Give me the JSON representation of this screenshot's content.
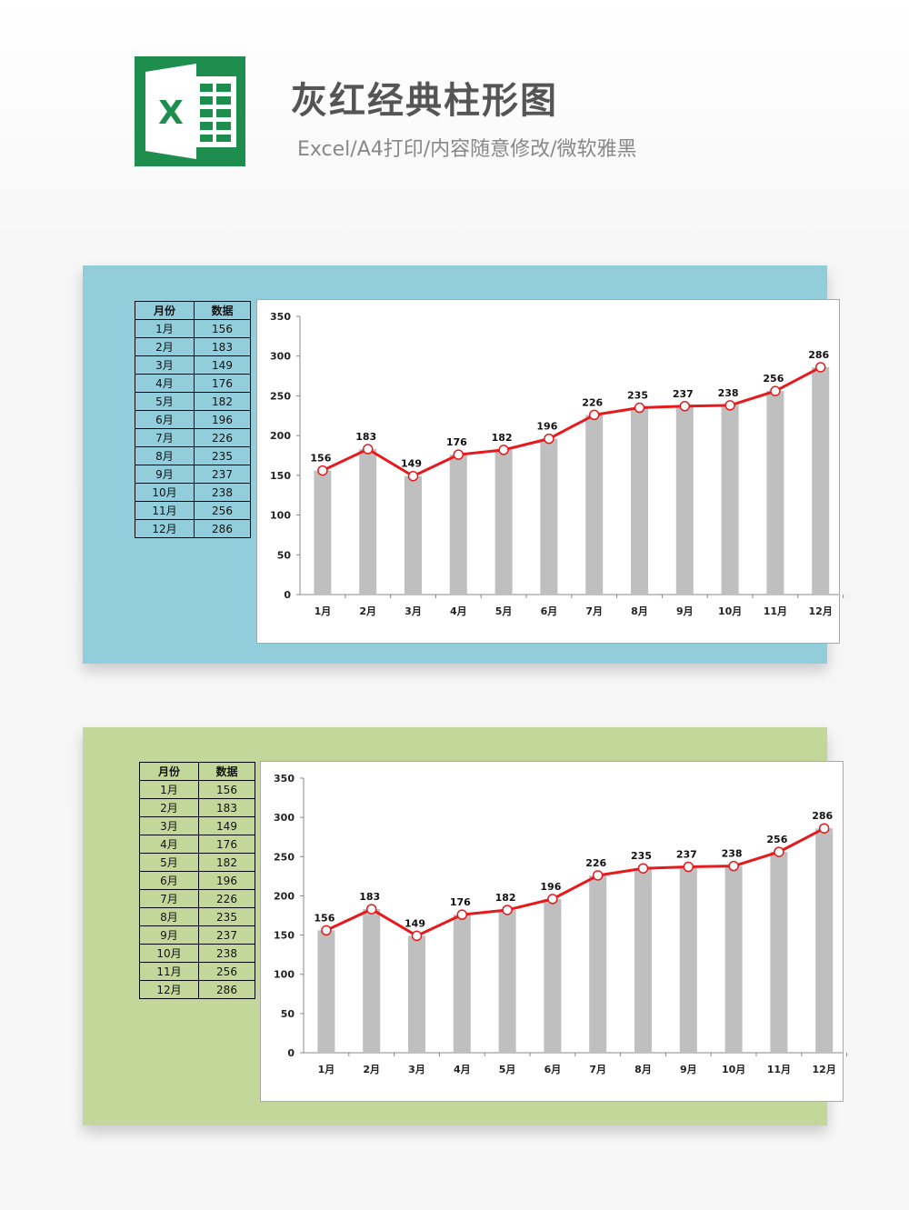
{
  "header": {
    "title": "灰红经典柱形图",
    "subtitle": "Excel/A4打印/内容随意修改/微软雅黑",
    "logo_letter": "X",
    "logo_color": "#1e8e4f"
  },
  "table": {
    "col_month": "月份",
    "col_value": "数据",
    "rows": [
      {
        "month": "1月",
        "value": "156"
      },
      {
        "month": "2月",
        "value": "183"
      },
      {
        "month": "3月",
        "value": "149"
      },
      {
        "month": "4月",
        "value": "176"
      },
      {
        "month": "5月",
        "value": "182"
      },
      {
        "month": "6月",
        "value": "196"
      },
      {
        "month": "7月",
        "value": "226"
      },
      {
        "month": "8月",
        "value": "235"
      },
      {
        "month": "9月",
        "value": "237"
      },
      {
        "month": "10月",
        "value": "238"
      },
      {
        "month": "11月",
        "value": "256"
      },
      {
        "month": "12月",
        "value": "286"
      }
    ]
  },
  "colors": {
    "bar": "#bfbfbf",
    "line": "#e8191c",
    "panel_blue": "#92cddc",
    "panel_green": "#c4d79b"
  },
  "chart_data": [
    {
      "type": "bar",
      "panel": "blue",
      "categories": [
        "1月",
        "2月",
        "3月",
        "4月",
        "5月",
        "6月",
        "7月",
        "8月",
        "9月",
        "10月",
        "11月",
        "12月"
      ],
      "values": [
        156,
        183,
        149,
        176,
        182,
        196,
        226,
        235,
        237,
        238,
        256,
        286
      ],
      "overlay": "line",
      "ylim": [
        0,
        350
      ],
      "yticks": [
        0,
        50,
        100,
        150,
        200,
        250,
        300,
        350
      ],
      "grid": false,
      "legend": "none"
    },
    {
      "type": "bar",
      "panel": "green",
      "categories": [
        "1月",
        "2月",
        "3月",
        "4月",
        "5月",
        "6月",
        "7月",
        "8月",
        "9月",
        "10月",
        "11月",
        "12月"
      ],
      "values": [
        156,
        183,
        149,
        176,
        182,
        196,
        226,
        235,
        237,
        238,
        256,
        286
      ],
      "overlay": "line",
      "ylim": [
        0,
        350
      ],
      "yticks": [
        0,
        50,
        100,
        150,
        200,
        250,
        300,
        350
      ],
      "grid": false,
      "legend": "none"
    }
  ]
}
